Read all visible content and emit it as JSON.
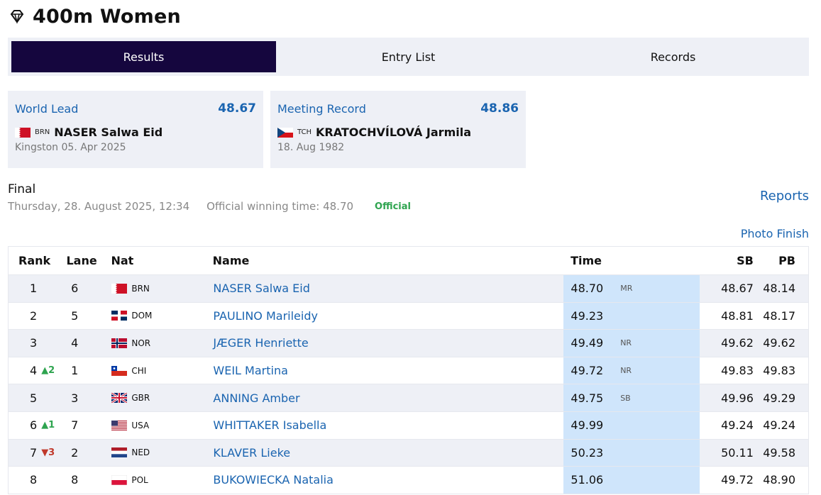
{
  "page": {
    "title": "400m Women"
  },
  "tabs": [
    {
      "label": "Results",
      "active": true
    },
    {
      "label": "Entry List",
      "active": false
    },
    {
      "label": "Records",
      "active": false
    }
  ],
  "cards": {
    "world_lead": {
      "label": "World Lead",
      "value": "48.67",
      "nat": "BRN",
      "athlete": "NASER Salwa Eid",
      "meta": "Kingston 05. Apr 2025"
    },
    "meeting_record": {
      "label": "Meeting Record",
      "value": "48.86",
      "nat": "TCH",
      "athlete": "KRATOCHVÍLOVÁ Jarmila",
      "meta": "18. Aug 1982"
    }
  },
  "final": {
    "label": "Final",
    "date": "Thursday, 28. August 2025, 12:34",
    "winning_time": "Official winning time: 48.70",
    "status": "Official",
    "reports_link": "Reports",
    "photo_finish_link": "Photo Finish"
  },
  "table": {
    "headers": {
      "rank": "Rank",
      "lane": "Lane",
      "nat": "Nat",
      "name": "Name",
      "time": "Time",
      "sb": "SB",
      "pb": "PB"
    },
    "rows": [
      {
        "rank": "1",
        "move": "",
        "lane": "6",
        "nat": "BRN",
        "name": "NASER Salwa Eid",
        "time": "48.70",
        "tag": "MR",
        "sb": "48.67",
        "pb": "48.14"
      },
      {
        "rank": "2",
        "move": "",
        "lane": "5",
        "nat": "DOM",
        "name": "PAULINO Marileidy",
        "time": "49.23",
        "tag": "",
        "sb": "48.81",
        "pb": "48.17"
      },
      {
        "rank": "3",
        "move": "",
        "lane": "4",
        "nat": "NOR",
        "name": "JÆGER Henriette",
        "time": "49.49",
        "tag": "NR",
        "sb": "49.62",
        "pb": "49.62"
      },
      {
        "rank": "4",
        "move": "▲2",
        "lane": "1",
        "nat": "CHI",
        "name": "WEIL Martina",
        "time": "49.72",
        "tag": "NR",
        "sb": "49.83",
        "pb": "49.83"
      },
      {
        "rank": "5",
        "move": "",
        "lane": "3",
        "nat": "GBR",
        "name": "ANNING Amber",
        "time": "49.75",
        "tag": "SB",
        "sb": "49.96",
        "pb": "49.29"
      },
      {
        "rank": "6",
        "move": "▲1",
        "lane": "7",
        "nat": "USA",
        "name": "WHITTAKER Isabella",
        "time": "49.99",
        "tag": "",
        "sb": "49.24",
        "pb": "49.24"
      },
      {
        "rank": "7",
        "move": "▼3",
        "lane": "2",
        "nat": "NED",
        "name": "KLAVER Lieke",
        "time": "50.23",
        "tag": "",
        "sb": "50.11",
        "pb": "49.58"
      },
      {
        "rank": "8",
        "move": "",
        "lane": "8",
        "nat": "POL",
        "name": "BUKOWIECKA Natalia",
        "time": "51.06",
        "tag": "",
        "sb": "49.72",
        "pb": "48.90"
      }
    ]
  },
  "colors": {
    "tab_active": "#15063e",
    "link": "#1a64b0",
    "time_col": "#cfe5fb",
    "official": "#2ea44f"
  }
}
